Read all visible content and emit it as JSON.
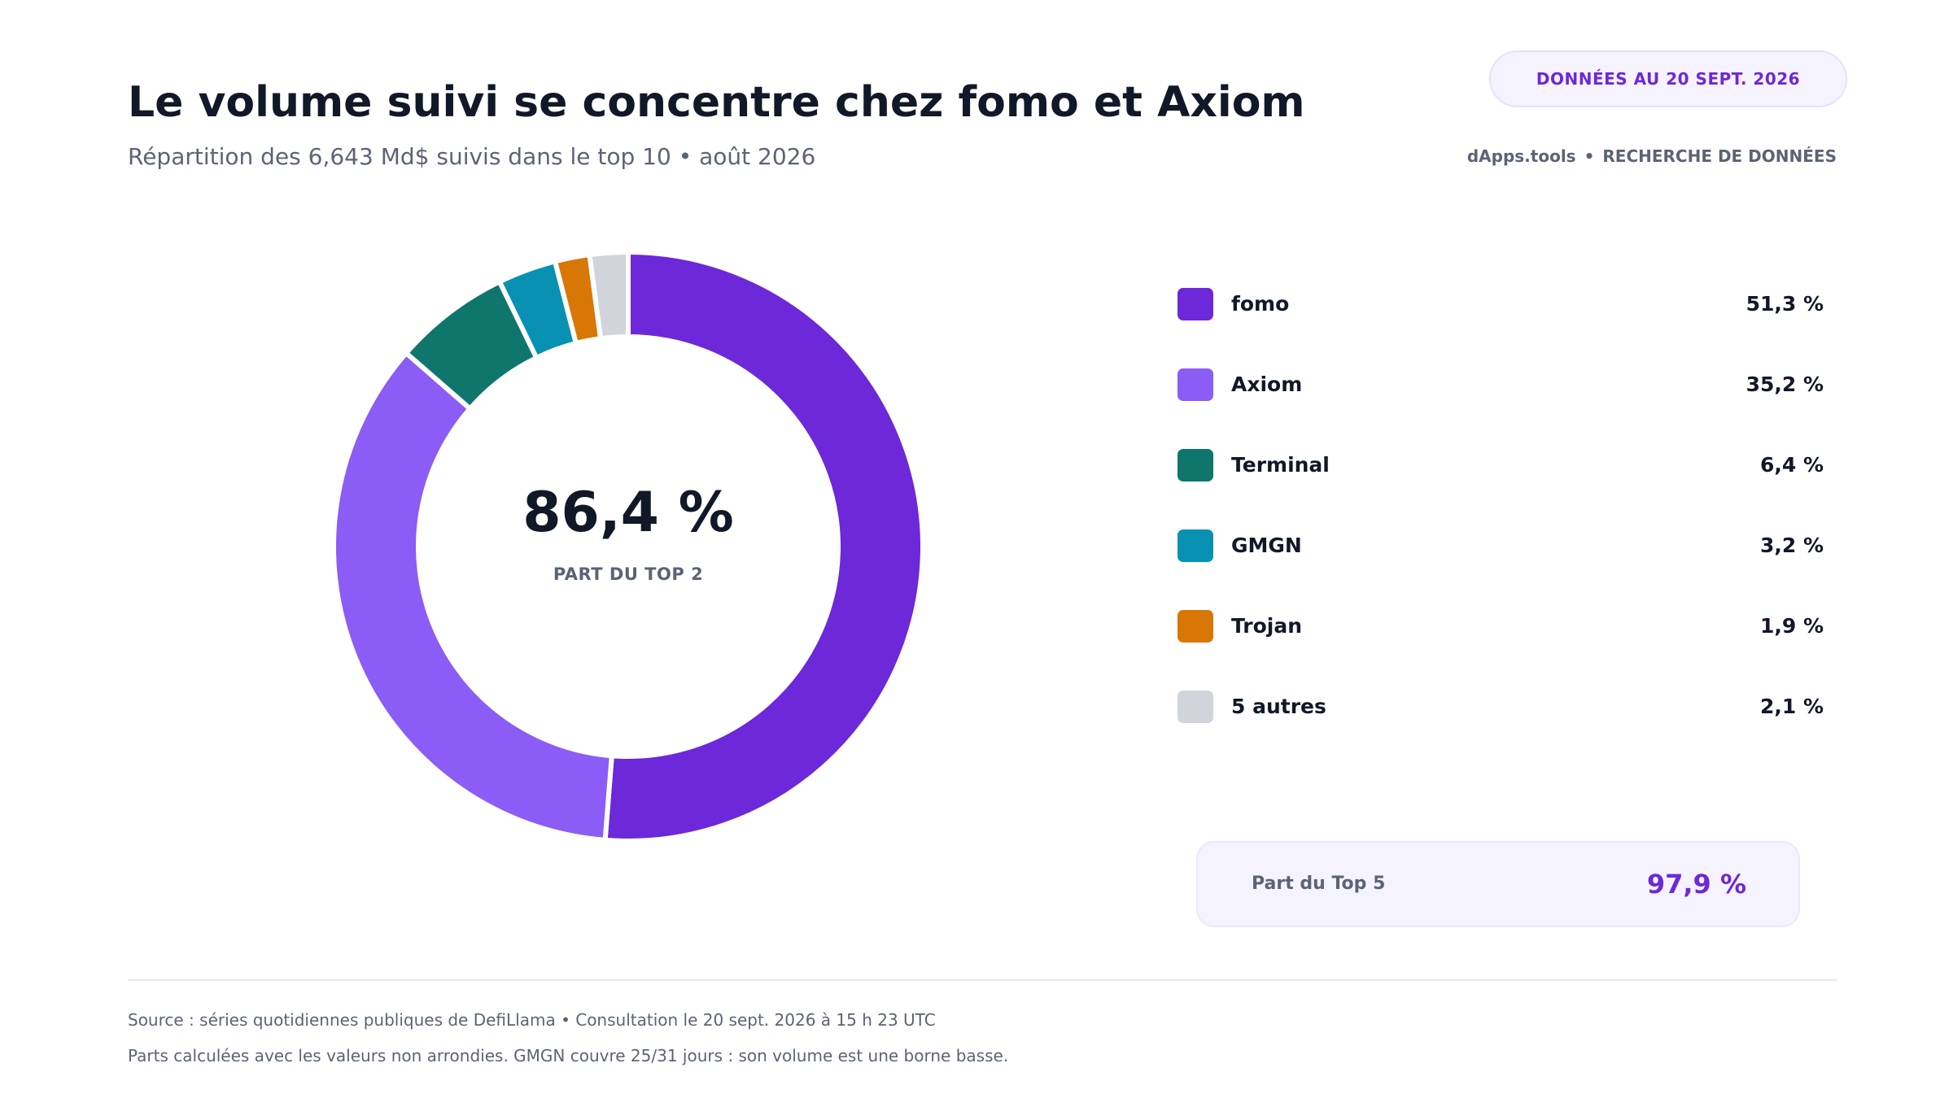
{
  "header": {
    "title": "Le volume suivi se concentre chez fomo et Axiom",
    "subtitle": "Répartition des 6,643 Md$ suivis dans le top 10  •  août 2026",
    "badge": "DONNÉES AU 20 SEPT. 2026",
    "brand_name": "dApps.tools",
    "brand_sep": "•",
    "brand_tagline": "RECHERCHE DE DONNÉES"
  },
  "center": {
    "value": "86,4 %",
    "label": "PART DU TOP 2"
  },
  "top5": {
    "label": "Part du Top 5",
    "value": "97,9 %"
  },
  "footer": {
    "line1": "Source : séries quotidiennes publiques de DefiLlama  •  Consultation le 20 sept. 2026 à 15 h 23 UTC",
    "line2": "Parts calculées avec les valeurs non arrondies. GMGN couvre 25/31 jours : son volume est une borne basse."
  },
  "chart_data": {
    "type": "pie",
    "categories": [
      "fomo",
      "Axiom",
      "Terminal",
      "GMGN",
      "Trojan",
      "5 autres"
    ],
    "values": [
      51.3,
      35.2,
      6.4,
      3.2,
      1.9,
      2.1
    ],
    "value_labels": [
      "51,3 %",
      "35,2 %",
      "6,4 %",
      "3,2 %",
      "1,9 %",
      "2,1 %"
    ],
    "colors": [
      "#6d28d9",
      "#8b5cf6",
      "#0f766e",
      "#0891b2",
      "#d97706",
      "#d1d5db"
    ],
    "unit": "%",
    "legend_position": "right"
  }
}
